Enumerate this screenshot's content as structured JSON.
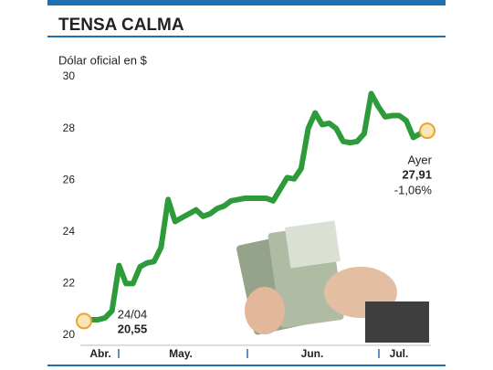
{
  "chart_data": {
    "type": "line",
    "title": "TENSA CALMA",
    "subtitle": "Dólar oficial en $",
    "x_labels": [
      "Abr.",
      "May.",
      "Jun.",
      "Jul."
    ],
    "values": [
      20.55,
      20.6,
      20.6,
      20.67,
      20.95,
      22.7,
      22.0,
      22.0,
      22.65,
      22.8,
      22.85,
      23.4,
      25.25,
      24.4,
      24.55,
      24.7,
      24.85,
      24.6,
      24.7,
      24.9,
      25.0,
      25.2,
      25.25,
      25.3,
      25.3,
      25.3,
      25.3,
      25.2,
      25.65,
      26.1,
      26.05,
      26.45,
      28.0,
      28.6,
      28.15,
      28.2,
      28.0,
      27.5,
      27.45,
      27.5,
      27.8,
      29.35,
      28.85,
      28.45,
      28.5,
      28.5,
      28.3,
      27.65,
      27.8,
      27.91
    ],
    "color": "#2e9b3a",
    "start_label": {
      "date": "24/04",
      "value": "20,55"
    },
    "end_label": {
      "name": "Ayer",
      "value": "27,91",
      "change": "-1,06%"
    },
    "ylim": [
      20,
      30
    ],
    "yticks": [
      20,
      22,
      24,
      26,
      28,
      30
    ]
  }
}
